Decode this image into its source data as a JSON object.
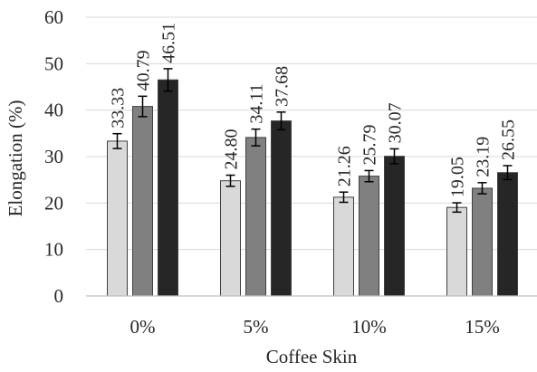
{
  "chart_data": {
    "type": "bar",
    "title": "",
    "xlabel": "Coffee Skin",
    "ylabel": "Elongation (%)",
    "ylim": [
      0,
      60
    ],
    "yticks": [
      0,
      10,
      20,
      30,
      40,
      50,
      60
    ],
    "grid": true,
    "legend": "none",
    "categories": [
      "0%",
      "5%",
      "10%",
      "15%"
    ],
    "series": [
      {
        "color": "#d9d9d9",
        "values": [
          33.33,
          24.8,
          21.26,
          19.05
        ],
        "labels": [
          "33.33",
          "24.80",
          "21.26",
          "19.05"
        ],
        "errors": [
          1.6,
          1.2,
          1.1,
          1.0
        ]
      },
      {
        "color": "#808080",
        "values": [
          40.79,
          34.11,
          25.79,
          23.19
        ],
        "labels": [
          "40.79",
          "34.11",
          "25.79",
          "23.19"
        ],
        "errors": [
          2.2,
          1.8,
          1.2,
          1.2
        ]
      },
      {
        "color": "#262626",
        "values": [
          46.51,
          37.68,
          30.07,
          26.55
        ],
        "labels": [
          "46.51",
          "37.68",
          "30.07",
          "26.55"
        ],
        "errors": [
          2.4,
          1.9,
          1.6,
          1.5
        ]
      }
    ]
  }
}
